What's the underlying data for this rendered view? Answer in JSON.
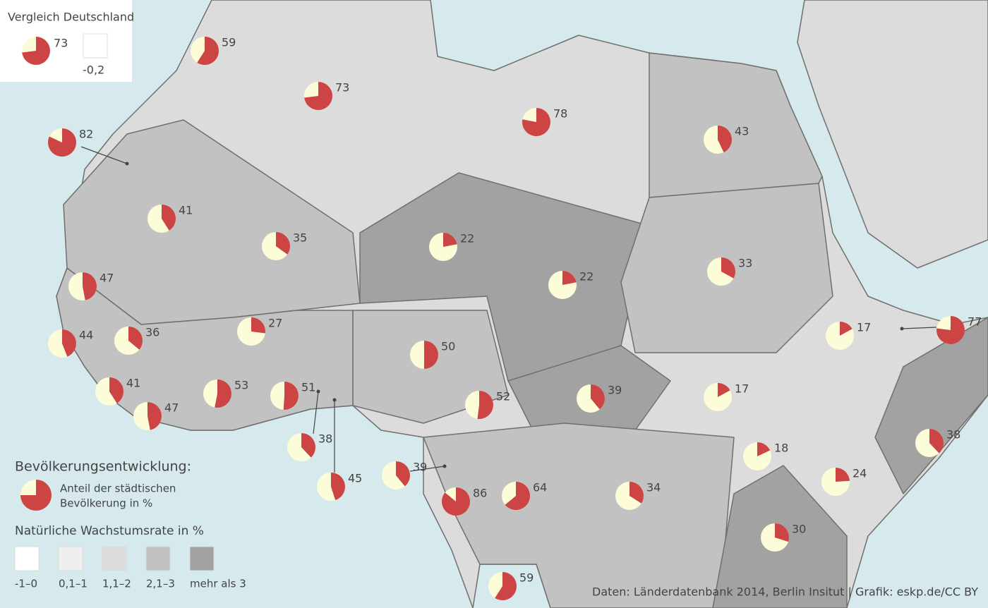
{
  "germany_comparison": {
    "title": "Vergleich Deutschland",
    "urban": 73,
    "growth": {
      "value": -0.2,
      "label": "-0,2"
    }
  },
  "colors": {
    "urban": "#cc4444",
    "rest": "#fdfcd9"
  },
  "pies": [
    59,
    73,
    78,
    43,
    82,
    41,
    35,
    22,
    22,
    33,
    47,
    27,
    17,
    77,
    44,
    36,
    50,
    41,
    53,
    51,
    47,
    52,
    39,
    17,
    38,
    38,
    18,
    45,
    39,
    86,
    64,
    34,
    24,
    30,
    59
  ],
  "legend": {
    "title": "Bevölkerungsentwicklung:",
    "pie_label": [
      "Anteil der städtischen",
      "Bevölkerung in %"
    ],
    "growth_title": "Natürliche Wachstumsrate in %",
    "classes": [
      {
        "label": "-1–0",
        "color": "#ffffff"
      },
      {
        "label": "0,1–1",
        "color": "#efefef"
      },
      {
        "label": "1,1–2",
        "color": "#dcdcdc"
      },
      {
        "label": "2,1–3",
        "color": "#c2c2c2"
      },
      {
        "label": "mehr als 3",
        "color": "#a2a2a2"
      }
    ]
  },
  "source": "Daten: Länderdatenbank 2014, Berlin Insitut | Grafik: eskp.de/CC BY"
}
